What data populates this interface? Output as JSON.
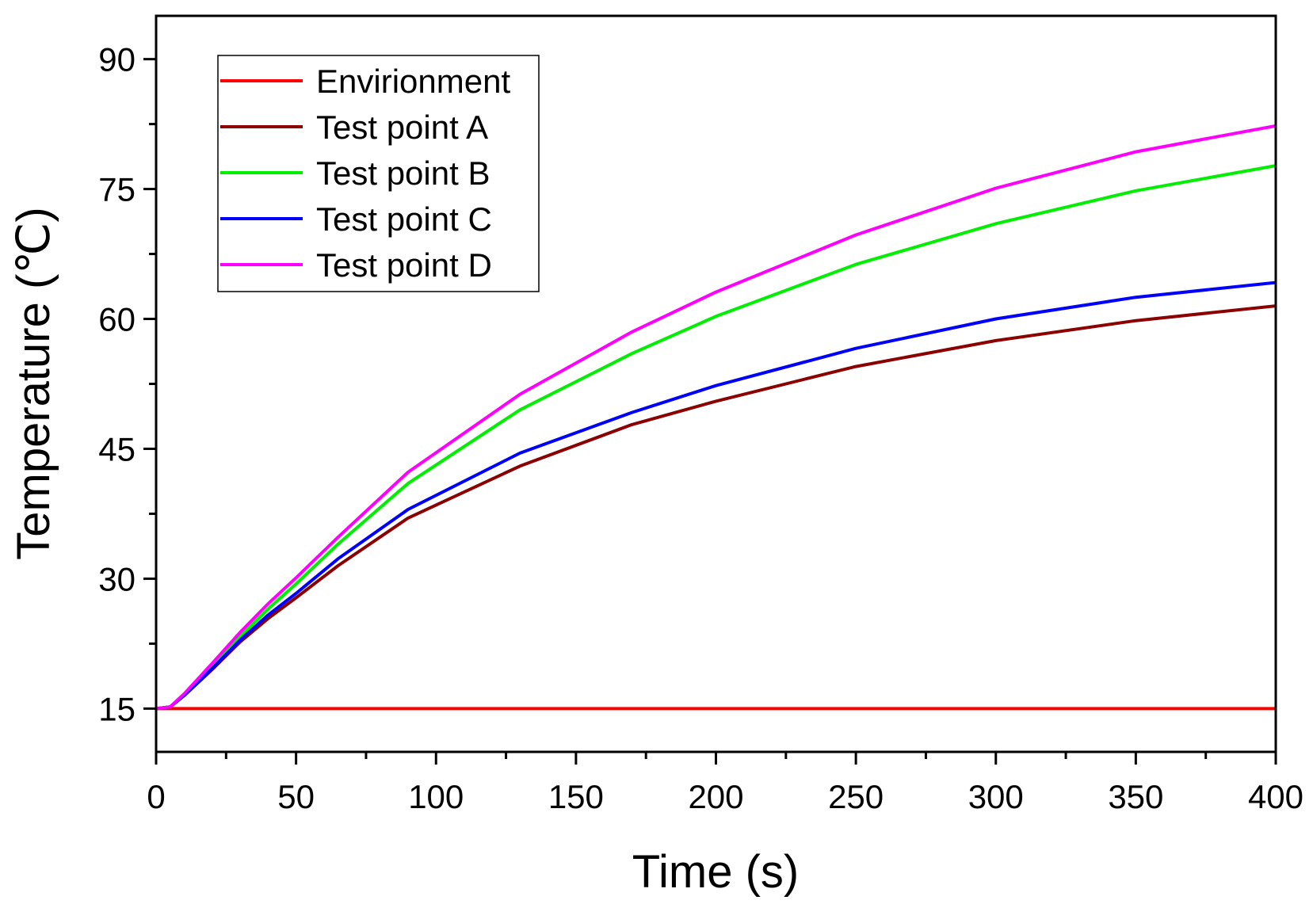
{
  "chart_data": {
    "type": "line",
    "title": "",
    "xlabel": "Time (s)",
    "ylabel": "Temperature (℃)",
    "xlim": [
      0,
      400
    ],
    "ylim": [
      10,
      95
    ],
    "xticks": [
      0,
      50,
      100,
      150,
      200,
      250,
      300,
      350,
      400
    ],
    "yticks": [
      15,
      30,
      45,
      60,
      75,
      90
    ],
    "x_minor_step": 25,
    "y_minor_step": 7.5,
    "grid": false,
    "legend_position": "top-left",
    "x": [
      0,
      5,
      10,
      20,
      30,
      40,
      50,
      65,
      90,
      130,
      170,
      200,
      250,
      300,
      350,
      400
    ],
    "series": [
      {
        "name": "Envirionment",
        "color": "#ff0000",
        "values": [
          15,
          15,
          15,
          15,
          15,
          15,
          15,
          15,
          15,
          15,
          15,
          15,
          15,
          15,
          15,
          15
        ]
      },
      {
        "name": "Test point A",
        "color": "#8b0000",
        "values": [
          15,
          15.2,
          16.5,
          19.5,
          22.7,
          25.4,
          27.8,
          31.5,
          37,
          43,
          47.8,
          50.5,
          54.5,
          57.5,
          59.8,
          61.5
        ]
      },
      {
        "name": "Test point B",
        "color": "#00ee00",
        "values": [
          15,
          15.2,
          16.6,
          19.9,
          23.3,
          26.5,
          29.4,
          34,
          41,
          49.5,
          56,
          60.3,
          66.3,
          71,
          74.8,
          77.7
        ]
      },
      {
        "name": "Test point C",
        "color": "#0000ff",
        "values": [
          15,
          15.2,
          16.5,
          19.6,
          22.9,
          25.8,
          28.3,
          32.3,
          38,
          44.5,
          49.2,
          52.3,
          56.6,
          60,
          62.5,
          64.2
        ]
      },
      {
        "name": "Test point D",
        "color": "#ff00ff",
        "values": [
          15,
          15.2,
          16.7,
          20.2,
          23.8,
          27.1,
          30.1,
          34.8,
          42.3,
          51.3,
          58.5,
          63.1,
          69.7,
          75.1,
          79.3,
          82.3
        ]
      }
    ]
  }
}
